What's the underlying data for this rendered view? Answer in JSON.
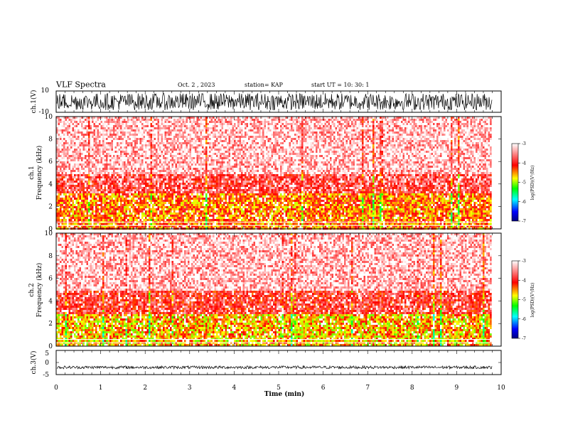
{
  "header": {
    "title": "VLF Spectra",
    "date": "Oct. 2 , 2023",
    "station": "station= KAP",
    "start_ut": "start UT = 10: 30: 1"
  },
  "chart_data": [
    {
      "type": "line",
      "name": "ch1-waveform",
      "ylabel": "ch.1(V)",
      "ylim": [
        -10,
        10
      ],
      "yticks": [
        "10",
        "-10"
      ],
      "xlim": [
        0,
        10
      ],
      "note_values": "dense oscillating waveform spanning roughly -8 V to +8 V, data ends near 9.8 min",
      "amplitude_range": [
        -8,
        8
      ]
    },
    {
      "type": "heatmap",
      "name": "ch1-spectrogram",
      "ylabel_channel": "ch.1",
      "ylabel": "Frequency (kHz)",
      "ylim": [
        0,
        10
      ],
      "yticks": [
        "0",
        "2",
        "4",
        "6",
        "8",
        "10"
      ],
      "xlim": [
        0,
        10
      ],
      "data_end_min": 9.8,
      "colorbar": {
        "label": "log(PSD)(V²/Hz)",
        "range": [
          -7,
          -3
        ],
        "ticks": [
          "-3",
          "-4",
          "-5",
          "-6",
          "-7"
        ]
      },
      "bands_kHz": [
        {
          "from": 0,
          "to": 3.3,
          "level": -4.4
        },
        {
          "from": 3.3,
          "to": 5,
          "level": -3.8
        },
        {
          "from": 5,
          "to": 10,
          "level": -3.3
        }
      ]
    },
    {
      "type": "heatmap",
      "name": "ch2-spectrogram",
      "ylabel_channel": "ch.2",
      "ylabel": "Frequency (kHz)",
      "ylim": [
        0,
        10
      ],
      "yticks": [
        "0",
        "2",
        "4",
        "6",
        "8",
        "10"
      ],
      "xlim": [
        0,
        10
      ],
      "data_end_min": 9.8,
      "colorbar": {
        "label": "log(PSD)(V²/Hz)",
        "range": [
          -7,
          -3
        ],
        "ticks": [
          "-3",
          "-4",
          "-5",
          "-6",
          "-7"
        ]
      },
      "bands_kHz": [
        {
          "from": 0,
          "to": 3,
          "level": -4.6
        },
        {
          "from": 3,
          "to": 5,
          "level": -3.9
        },
        {
          "from": 5,
          "to": 10,
          "level": -3.3
        }
      ]
    },
    {
      "type": "line",
      "name": "ch3-waveform",
      "ylabel": "ch.3(V)",
      "ylim": [
        -5,
        5
      ],
      "yticks": [
        "5",
        "0",
        "-5"
      ],
      "xlim": [
        0,
        10
      ],
      "amplitude_range": [
        -2.6,
        -1.4
      ]
    }
  ],
  "xaxis": {
    "label": "Time (min)",
    "ticks": [
      "0",
      "1",
      "2",
      "3",
      "4",
      "5",
      "6",
      "7",
      "8",
      "9",
      "10"
    ]
  },
  "colors": {
    "ink": "#000000",
    "scale": [
      "#000080",
      "#0000ff",
      "#00ffff",
      "#00ff00",
      "#ffff00",
      "#ff0000",
      "#ffffff"
    ]
  }
}
